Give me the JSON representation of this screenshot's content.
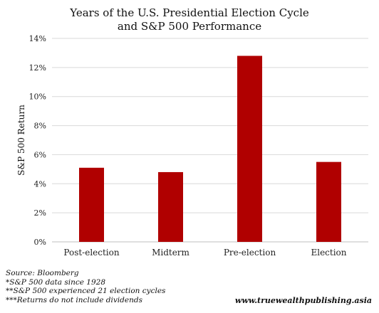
{
  "chart_data": {
    "type": "bar",
    "title": [
      "Years of the U.S. Presidential Election Cycle",
      "and S&P 500 Performance"
    ],
    "xlabel": "",
    "ylabel": "S&P 500 Return",
    "categories": [
      "Post-election",
      "Midterm",
      "Pre-election",
      "Election"
    ],
    "values": [
      5.1,
      4.8,
      12.8,
      5.5
    ],
    "ylim": [
      0,
      14
    ],
    "yticks": [
      0,
      2,
      4,
      6,
      8,
      10,
      12,
      14
    ],
    "ytick_labels": [
      "0%",
      "2%",
      "4%",
      "6%",
      "8%",
      "10%",
      "12%",
      "14%"
    ],
    "grid": true,
    "bar_color": "#b00000",
    "grid_color": "#d9d9d9"
  },
  "footnotes": [
    "Source: Bloomberg",
    "*S&P 500 data since 1928",
    "**S&P 500 experienced 21 election cycles",
    "***Returns do not include dividends"
  ],
  "website": "www.truewealthpublishing.asia"
}
